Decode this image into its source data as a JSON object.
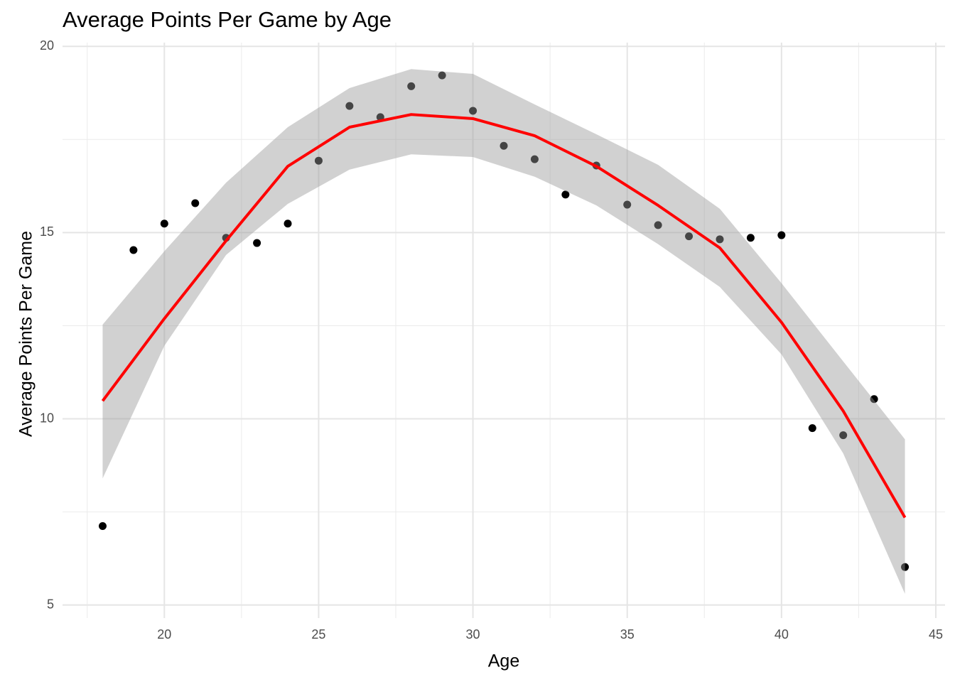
{
  "chart_data": {
    "type": "scatter",
    "title": "Average Points Per Game by Age",
    "x_label": "Age",
    "y_label": "Average Points Per Game",
    "x": [
      18,
      19,
      20,
      21,
      22,
      23,
      24,
      25,
      26,
      27,
      28,
      29,
      30,
      31,
      32,
      33,
      34,
      35,
      36,
      37,
      38,
      39,
      40,
      41,
      42,
      43,
      44
    ],
    "values": [
      7.12,
      14.53,
      15.24,
      15.79,
      14.86,
      14.72,
      15.24,
      16.93,
      18.4,
      18.1,
      18.93,
      19.22,
      18.27,
      17.33,
      16.97,
      16.02,
      16.8,
      15.75,
      15.2,
      14.9,
      14.82,
      14.86,
      14.93,
      9.75,
      9.56,
      10.53,
      6.02
    ],
    "color": "#000000",
    "smooth": {
      "x": [
        18,
        20,
        22,
        24,
        26,
        28,
        30,
        32,
        34,
        36,
        38,
        40,
        42,
        44
      ],
      "values": [
        10.48,
        12.69,
        14.78,
        16.78,
        17.83,
        18.17,
        18.06,
        17.6,
        16.78,
        15.73,
        14.59,
        12.59,
        10.21,
        7.35
      ],
      "upper": [
        12.53,
        14.5,
        16.34,
        17.83,
        18.88,
        19.39,
        19.26,
        18.44,
        17.64,
        16.82,
        15.64,
        13.64,
        11.54,
        9.45
      ],
      "lower": [
        8.4,
        11.96,
        14.4,
        15.77,
        16.69,
        17.1,
        17.03,
        16.5,
        15.73,
        14.69,
        13.54,
        11.73,
        9.07,
        5.3
      ],
      "color": "#ff0000",
      "band_color": "#999999"
    },
    "xlim": [
      16.7,
      45.3
    ],
    "ylim": [
      4.65,
      20.1
    ],
    "xticks": [
      20,
      25,
      30,
      35,
      40,
      45
    ],
    "yticks": [
      5,
      10,
      15,
      20
    ],
    "xminor": [
      17.5,
      22.5,
      27.5,
      32.5,
      37.5,
      42.5
    ],
    "yminor": [
      7.5,
      12.5,
      17.5
    ],
    "grid": true
  }
}
